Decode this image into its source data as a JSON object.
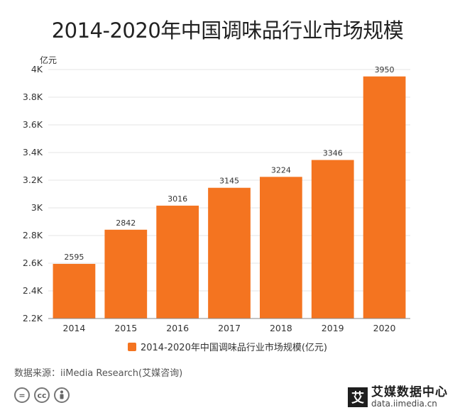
{
  "chart_data": {
    "type": "bar",
    "title": "2014-2020年中国调味品行业市场规模",
    "unit_label": "亿元",
    "categories": [
      "2014",
      "2015",
      "2016",
      "2017",
      "2018",
      "2019",
      "2020"
    ],
    "series": [
      {
        "name": "2014-2020年中国调味品行业市场规模(亿元)",
        "values": [
          2595,
          2842,
          3016,
          3145,
          3224,
          3346,
          3950
        ]
      }
    ],
    "ylim": [
      2200,
      4000
    ],
    "y_ticks": [
      2200,
      2400,
      2600,
      2800,
      3000,
      3200,
      3400,
      3600,
      3800,
      4000
    ],
    "y_tick_labels": [
      "2.2K",
      "2.4K",
      "2.6K",
      "2.8K",
      "3K",
      "3.2K",
      "3.4K",
      "3.6K",
      "3.8K",
      "4K"
    ],
    "grid": true,
    "legend_position": "bottom",
    "bar_color": "#F47420"
  },
  "footer": {
    "source": "数据来源：iiMedia Research(艾媒咨询)",
    "cc_icons": [
      "equals-icon",
      "cc-icon",
      "person-icon"
    ],
    "brand_logo_char": "艾",
    "brand_name": "艾媒数据中心",
    "brand_url": "data.iimedia.cn"
  }
}
